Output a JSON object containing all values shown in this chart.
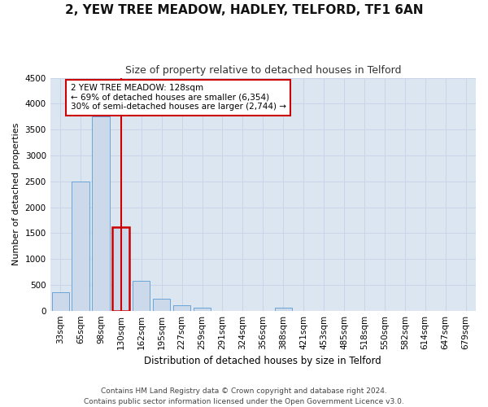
{
  "title": "2, YEW TREE MEADOW, HADLEY, TELFORD, TF1 6AN",
  "subtitle": "Size of property relative to detached houses in Telford",
  "xlabel": "Distribution of detached houses by size in Telford",
  "ylabel": "Number of detached properties",
  "categories": [
    "33sqm",
    "65sqm",
    "98sqm",
    "130sqm",
    "162sqm",
    "195sqm",
    "227sqm",
    "259sqm",
    "291sqm",
    "324sqm",
    "356sqm",
    "388sqm",
    "421sqm",
    "453sqm",
    "485sqm",
    "518sqm",
    "550sqm",
    "582sqm",
    "614sqm",
    "647sqm",
    "679sqm"
  ],
  "values": [
    350,
    2500,
    3750,
    1620,
    580,
    230,
    105,
    55,
    0,
    0,
    0,
    55,
    0,
    0,
    0,
    0,
    0,
    0,
    0,
    0,
    0
  ],
  "bar_color": "#ccd9ea",
  "bar_edge_color": "#5b9bd5",
  "highlight_bar_index": 3,
  "highlight_bar_edge_color": "#cc0000",
  "highlight_line_color": "#cc0000",
  "annotation_box_text": "2 YEW TREE MEADOW: 128sqm\n← 69% of detached houses are smaller (6,354)\n30% of semi-detached houses are larger (2,744) →",
  "annotation_box_facecolor": "#ffffff",
  "annotation_box_edgecolor": "#cc0000",
  "ylim": [
    0,
    4500
  ],
  "yticks": [
    0,
    500,
    1000,
    1500,
    2000,
    2500,
    3000,
    3500,
    4000,
    4500
  ],
  "grid_color": "#c8d4e8",
  "bg_color": "#dce6f0",
  "footer": "Contains HM Land Registry data © Crown copyright and database right 2024.\nContains public sector information licensed under the Open Government Licence v3.0.",
  "title_fontsize": 11,
  "subtitle_fontsize": 9,
  "xlabel_fontsize": 8.5,
  "ylabel_fontsize": 8,
  "tick_fontsize": 7.5,
  "annotation_fontsize": 7.5,
  "footer_fontsize": 6.5
}
